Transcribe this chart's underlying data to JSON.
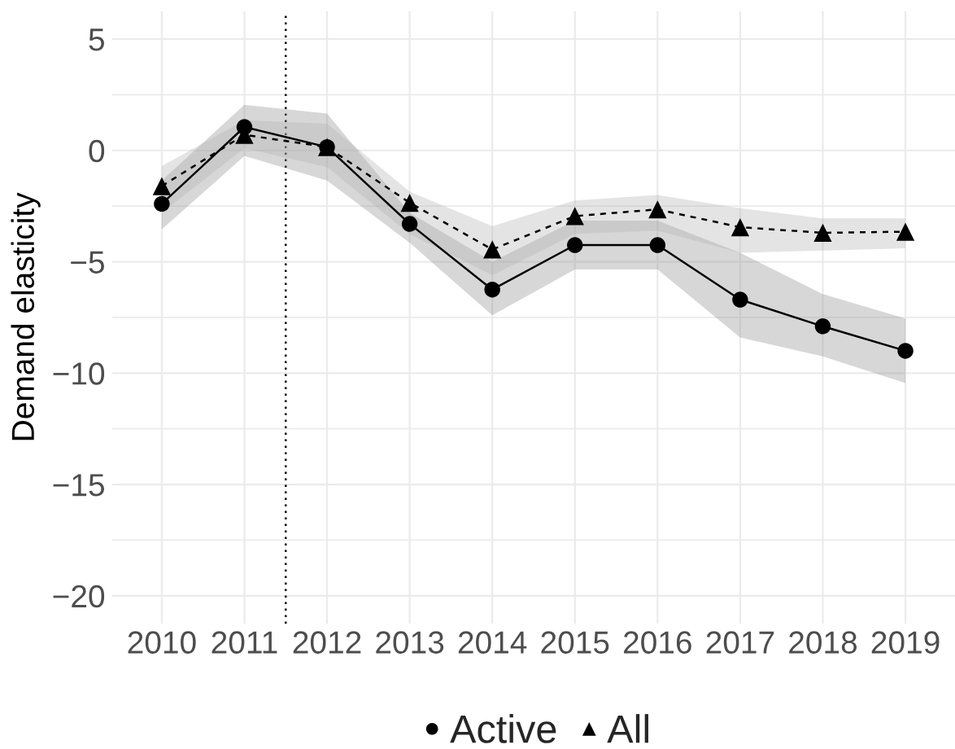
{
  "chart_data": {
    "type": "line",
    "ylabel": "Demand elasticity",
    "x": [
      2010,
      2011,
      2012,
      2013,
      2014,
      2015,
      2016,
      2017,
      2018,
      2019
    ],
    "xlim": [
      2009.4,
      2019.6
    ],
    "xticks": [
      2010,
      2011,
      2012,
      2013,
      2014,
      2015,
      2016,
      2017,
      2018,
      2019
    ],
    "ylim": [
      -21.25,
      6.25
    ],
    "yticks": [
      -20,
      -15,
      -10,
      -5,
      0,
      5
    ],
    "grid": true,
    "legend": "bottom",
    "ref_lines": [
      {
        "axis": "x",
        "value": 2011.5,
        "color": "#000000",
        "line_style": "dotted"
      }
    ],
    "series": [
      {
        "name": "Active",
        "color": "#000000",
        "marker": "circle",
        "line_style": "solid",
        "values": [
          -2.4,
          1.05,
          0.15,
          -3.3,
          -6.25,
          -4.25,
          -4.25,
          -6.7,
          -7.9,
          -9.0
        ],
        "lower": [
          -3.55,
          -0.25,
          -1.35,
          -4.15,
          -7.4,
          -5.35,
          -5.35,
          -8.4,
          -9.25,
          -10.45
        ],
        "upper": [
          -1.35,
          2.05,
          1.65,
          -2.8,
          -5.0,
          -3.15,
          -3.15,
          -4.6,
          -6.45,
          -7.55
        ]
      },
      {
        "name": "All",
        "color": "#000000",
        "marker": "triangle",
        "line_style": "dashed",
        "values": [
          -1.6,
          0.7,
          0.15,
          -2.35,
          -4.45,
          -2.95,
          -2.65,
          -3.45,
          -3.7,
          -3.65
        ],
        "lower": [
          -2.8,
          0.1,
          -0.75,
          -3.75,
          -5.6,
          -3.75,
          -3.6,
          -4.6,
          -4.5,
          -4.4
        ],
        "upper": [
          -0.7,
          1.35,
          1.2,
          -1.85,
          -3.4,
          -2.25,
          -2.0,
          -2.6,
          -3.05,
          -3.05
        ]
      }
    ]
  }
}
